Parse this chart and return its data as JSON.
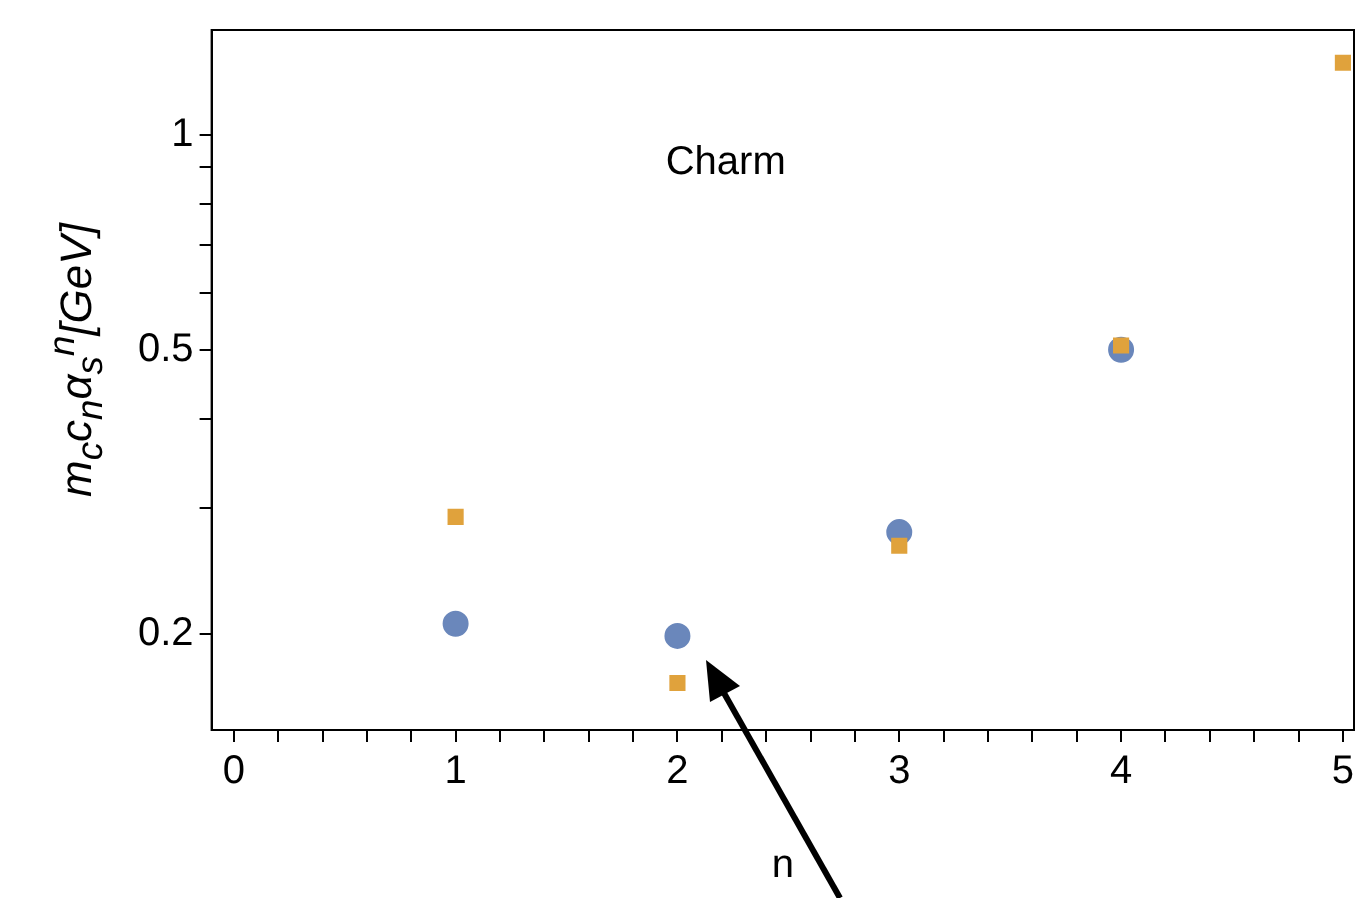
{
  "chart_data": {
    "type": "scatter",
    "xlabel": "n",
    "ylabel": "m$_{c}$c$_{n}$α$_{s}$$^{n}$[GeV]",
    "annotations": [
      "Charm"
    ],
    "log": "y",
    "grid": false,
    "legend": false,
    "xlim": [
      -0.1,
      5.05
    ],
    "xticks": [
      0,
      {
        "value": 0.2,
        "label": null
      },
      {
        "value": 0.4,
        "label": null
      },
      {
        "value": 0.6,
        "label": null
      },
      {
        "value": 0.8,
        "label": null
      },
      1,
      {
        "value": 1.2,
        "label": null
      },
      {
        "value": 1.4,
        "label": null
      },
      {
        "value": 1.6,
        "label": null
      },
      {
        "value": 1.8,
        "label": null
      },
      2,
      {
        "value": 2.2,
        "label": null
      },
      {
        "value": 2.4,
        "label": null
      },
      {
        "value": 2.6,
        "label": null
      },
      {
        "value": 2.8,
        "label": null
      },
      3,
      {
        "value": 3.2,
        "label": null
      },
      {
        "value": 3.4,
        "label": null
      },
      {
        "value": 3.6,
        "label": null
      },
      {
        "value": 3.8,
        "label": null
      },
      4,
      {
        "value": 4.2,
        "label": null
      },
      {
        "value": 4.4,
        "label": null
      },
      {
        "value": 4.6,
        "label": null
      },
      {
        "value": 4.8,
        "label": null
      },
      5
    ],
    "ylim": [
      0.147,
      1.4
    ],
    "yticks": [
      0.2,
      {
        "value": 0.3,
        "label": null
      },
      {
        "value": 0.4,
        "label": null
      },
      0.5,
      {
        "value": 0.6,
        "label": null
      },
      {
        "value": 0.7,
        "label": null
      },
      {
        "value": 0.8,
        "label": null
      },
      {
        "value": 0.9,
        "label": null
      },
      1
    ],
    "series": [
      {
        "color": "#6a87bb",
        "marker": "circle",
        "x": [
          1,
          2,
          3,
          4
        ],
        "values": [
          0.207,
          0.199,
          0.278,
          0.5
        ]
      },
      {
        "color": "#e0a23c",
        "marker": "square",
        "x": [
          1,
          2,
          3,
          4,
          5
        ],
        "values": [
          0.292,
          0.171,
          0.266,
          0.507,
          1.26
        ]
      }
    ]
  }
}
